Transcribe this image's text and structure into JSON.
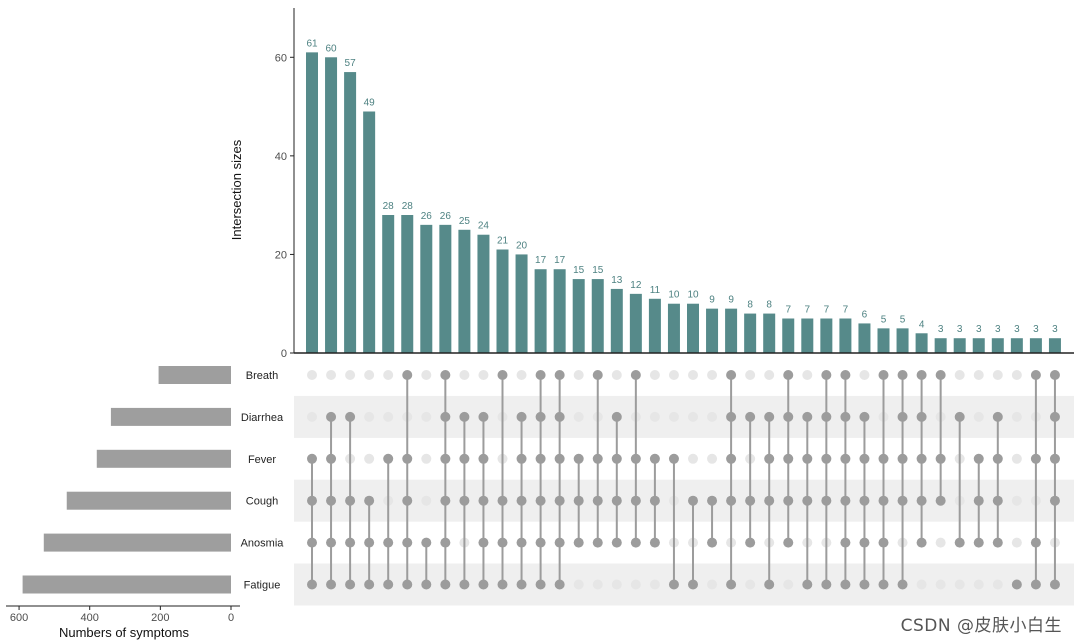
{
  "watermark": "CSDN @皮肤小白生",
  "colors": {
    "bar": "#568a8a",
    "bar_label": "#4e8282",
    "set_bar": "#9e9e9e",
    "dot_on": "#9c9c9c",
    "dot_off": "#e6e6e6",
    "stripe": "#efefef",
    "axis": "#222222",
    "tick_text": "#4d4d4d"
  },
  "chart_data": {
    "type": "upset",
    "ylabel": "Intersection sizes",
    "xlabel_sets": "Numbers of symptoms",
    "ylim": [
      0,
      70
    ],
    "y_ticks": [
      0,
      20,
      40,
      60
    ],
    "sets": [
      "Breath",
      "Diarrhea",
      "Fever",
      "Cough",
      "Anosmia",
      "Fatigue"
    ],
    "set_sizes": [
      205,
      340,
      380,
      465,
      530,
      590
    ],
    "set_xlim": [
      0,
      620
    ],
    "set_ticks": [
      0,
      200,
      400,
      600
    ],
    "intersections": [
      {
        "value": 61,
        "sets": [
          "Fever",
          "Cough",
          "Anosmia",
          "Fatigue"
        ]
      },
      {
        "value": 60,
        "sets": [
          "Diarrhea",
          "Fever",
          "Cough",
          "Anosmia",
          "Fatigue"
        ]
      },
      {
        "value": 57,
        "sets": [
          "Diarrhea",
          "Cough",
          "Anosmia",
          "Fatigue"
        ]
      },
      {
        "value": 49,
        "sets": [
          "Cough",
          "Anosmia",
          "Fatigue"
        ]
      },
      {
        "value": 28,
        "sets": [
          "Fever",
          "Anosmia",
          "Fatigue"
        ]
      },
      {
        "value": 28,
        "sets": [
          "Breath",
          "Fever",
          "Cough",
          "Anosmia",
          "Fatigue"
        ]
      },
      {
        "value": 26,
        "sets": [
          "Anosmia",
          "Fatigue"
        ]
      },
      {
        "value": 26,
        "sets": [
          "Breath",
          "Diarrhea",
          "Fever",
          "Cough",
          "Anosmia",
          "Fatigue"
        ]
      },
      {
        "value": 25,
        "sets": [
          "Diarrhea",
          "Fever",
          "Cough",
          "Fatigue"
        ]
      },
      {
        "value": 24,
        "sets": [
          "Diarrhea",
          "Fever",
          "Cough",
          "Anosmia",
          "Fatigue"
        ]
      },
      {
        "value": 21,
        "sets": [
          "Breath",
          "Cough",
          "Anosmia",
          "Fatigue"
        ]
      },
      {
        "value": 20,
        "sets": [
          "Diarrhea",
          "Fever",
          "Cough",
          "Anosmia",
          "Fatigue"
        ]
      },
      {
        "value": 17,
        "sets": [
          "Breath",
          "Diarrhea",
          "Fever",
          "Cough",
          "Anosmia",
          "Fatigue"
        ]
      },
      {
        "value": 17,
        "sets": [
          "Breath",
          "Diarrhea",
          "Fever",
          "Cough",
          "Anosmia",
          "Fatigue"
        ]
      },
      {
        "value": 15,
        "sets": [
          "Fever",
          "Cough",
          "Anosmia"
        ]
      },
      {
        "value": 15,
        "sets": [
          "Breath",
          "Fever",
          "Cough",
          "Anosmia"
        ]
      },
      {
        "value": 13,
        "sets": [
          "Diarrhea",
          "Fever",
          "Cough",
          "Anosmia"
        ]
      },
      {
        "value": 12,
        "sets": [
          "Breath",
          "Fever",
          "Cough",
          "Anosmia"
        ]
      },
      {
        "value": 11,
        "sets": [
          "Fever",
          "Cough",
          "Anosmia"
        ]
      },
      {
        "value": 10,
        "sets": [
          "Fever",
          "Fatigue"
        ]
      },
      {
        "value": 10,
        "sets": [
          "Cough",
          "Fatigue"
        ]
      },
      {
        "value": 9,
        "sets": [
          "Cough",
          "Anosmia"
        ]
      },
      {
        "value": 9,
        "sets": [
          "Breath",
          "Diarrhea",
          "Fever",
          "Cough",
          "Fatigue"
        ]
      },
      {
        "value": 8,
        "sets": [
          "Diarrhea",
          "Cough",
          "Anosmia"
        ]
      },
      {
        "value": 8,
        "sets": [
          "Diarrhea",
          "Fever",
          "Cough",
          "Fatigue"
        ]
      },
      {
        "value": 7,
        "sets": [
          "Breath",
          "Diarrhea",
          "Fever",
          "Cough",
          "Anosmia"
        ]
      },
      {
        "value": 7,
        "sets": [
          "Diarrhea",
          "Fever",
          "Cough",
          "Fatigue"
        ]
      },
      {
        "value": 7,
        "sets": [
          "Breath",
          "Diarrhea",
          "Fever",
          "Cough",
          "Fatigue"
        ]
      },
      {
        "value": 7,
        "sets": [
          "Breath",
          "Diarrhea",
          "Fever",
          "Cough",
          "Anosmia",
          "Fatigue"
        ]
      },
      {
        "value": 6,
        "sets": [
          "Diarrhea",
          "Fever",
          "Cough",
          "Anosmia",
          "Fatigue"
        ]
      },
      {
        "value": 5,
        "sets": [
          "Breath",
          "Fever",
          "Cough",
          "Anosmia",
          "Fatigue"
        ]
      },
      {
        "value": 5,
        "sets": [
          "Breath",
          "Diarrhea",
          "Fever",
          "Cough",
          "Fatigue"
        ]
      },
      {
        "value": 4,
        "sets": [
          "Breath",
          "Diarrhea",
          "Fever",
          "Cough",
          "Anosmia"
        ]
      },
      {
        "value": 3,
        "sets": [
          "Breath",
          "Fever",
          "Cough"
        ]
      },
      {
        "value": 3,
        "sets": [
          "Diarrhea",
          "Anosmia"
        ]
      },
      {
        "value": 3,
        "sets": [
          "Fever",
          "Cough",
          "Anosmia"
        ]
      },
      {
        "value": 3,
        "sets": [
          "Diarrhea",
          "Fever",
          "Cough",
          "Anosmia"
        ]
      },
      {
        "value": 3,
        "sets": [
          "Fatigue"
        ]
      },
      {
        "value": 3,
        "sets": [
          "Breath",
          "Fever",
          "Anosmia",
          "Fatigue"
        ]
      },
      {
        "value": 3,
        "sets": [
          "Breath",
          "Diarrhea",
          "Fever",
          "Cough",
          "Fatigue"
        ]
      }
    ]
  }
}
